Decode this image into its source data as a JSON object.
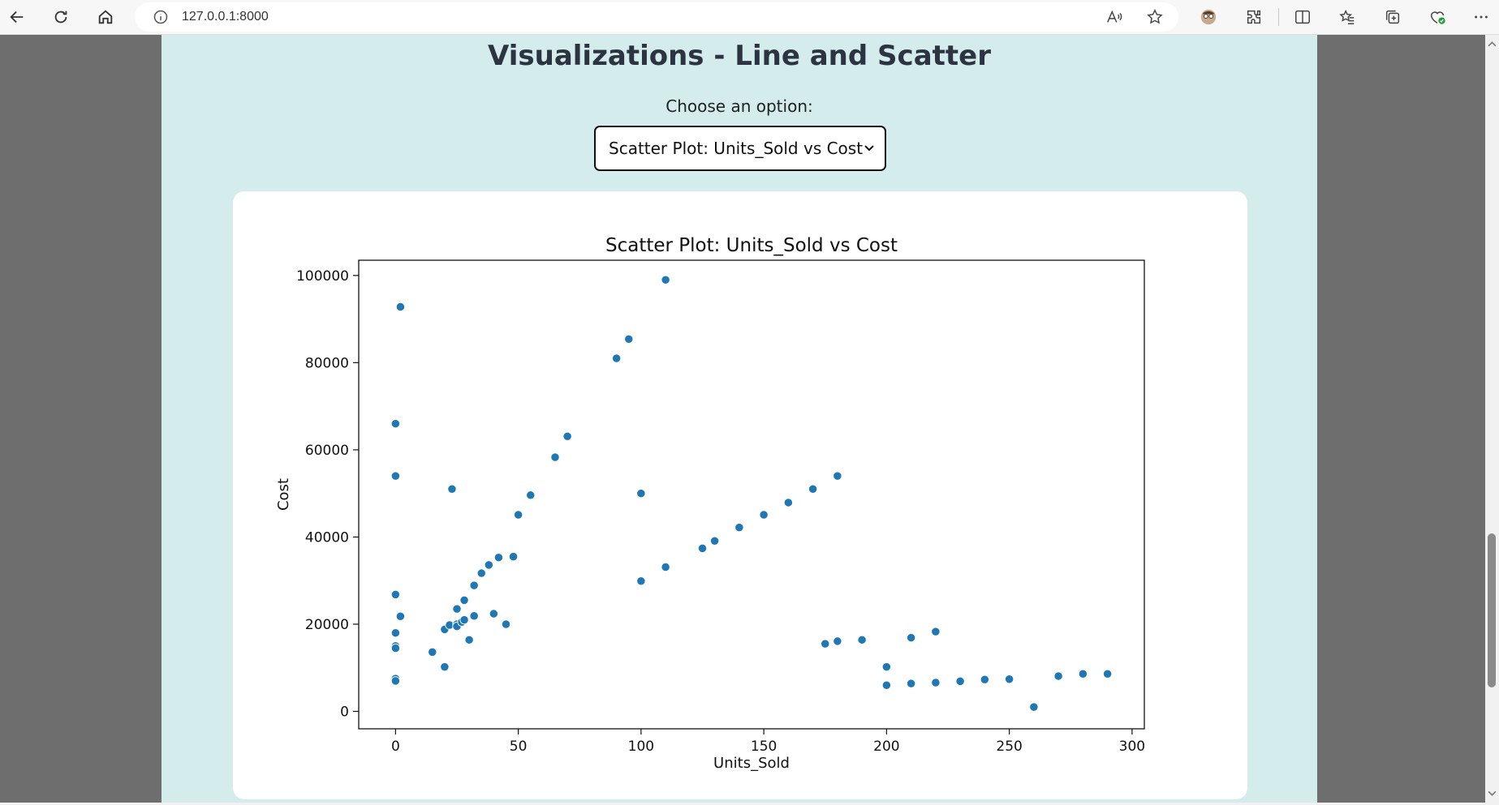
{
  "browser": {
    "url": "127.0.0.1:8000",
    "icons": [
      "back-icon",
      "refresh-icon",
      "home-icon",
      "info-icon",
      "read-aloud-icon",
      "favorite-star-icon",
      "profile-icon",
      "extensions-icon",
      "split-screen-icon",
      "favorites-icon",
      "collections-icon",
      "browser-essentials-icon",
      "more-icon"
    ]
  },
  "page": {
    "title": "Visualizations - Line and Scatter",
    "choose_label": "Choose an option:",
    "select_value": "Scatter Plot: Units_Sold vs Cost"
  },
  "chart_data": {
    "type": "scatter",
    "title": "Scatter Plot: Units_Sold vs Cost",
    "xlabel": "Units_Sold",
    "ylabel": "Cost",
    "xlim": [
      -15,
      305
    ],
    "ylim": [
      -4000,
      103500
    ],
    "xticks": [
      0,
      50,
      100,
      150,
      200,
      250,
      300
    ],
    "yticks": [
      0,
      20000,
      40000,
      60000,
      80000,
      100000
    ],
    "grid": false,
    "color": "#1f77b4",
    "points": [
      [
        2,
        92800
      ],
      [
        0,
        66000
      ],
      [
        0,
        54000
      ],
      [
        0,
        26800
      ],
      [
        2,
        21800
      ],
      [
        0,
        18000
      ],
      [
        0,
        15000
      ],
      [
        0,
        14500
      ],
      [
        0,
        7500
      ],
      [
        0,
        7000
      ],
      [
        15,
        13600
      ],
      [
        20,
        10200
      ],
      [
        20,
        18800
      ],
      [
        22,
        19800
      ],
      [
        23,
        51000
      ],
      [
        25,
        20000
      ],
      [
        25,
        19500
      ],
      [
        25,
        23500
      ],
      [
        27,
        20500
      ],
      [
        28,
        21000
      ],
      [
        28,
        25500
      ],
      [
        30,
        16400
      ],
      [
        32,
        21900
      ],
      [
        32,
        28900
      ],
      [
        35,
        31700
      ],
      [
        38,
        33600
      ],
      [
        40,
        22400
      ],
      [
        42,
        35300
      ],
      [
        45,
        20000
      ],
      [
        48,
        35500
      ],
      [
        50,
        45100
      ],
      [
        55,
        49600
      ],
      [
        65,
        58300
      ],
      [
        70,
        63100
      ],
      [
        90,
        81000
      ],
      [
        95,
        85400
      ],
      [
        100,
        50000
      ],
      [
        100,
        29900
      ],
      [
        110,
        33100
      ],
      [
        110,
        99000
      ],
      [
        125,
        37400
      ],
      [
        130,
        39100
      ],
      [
        140,
        42200
      ],
      [
        150,
        45100
      ],
      [
        160,
        47900
      ],
      [
        170,
        51000
      ],
      [
        180,
        54000
      ],
      [
        175,
        15500
      ],
      [
        180,
        16100
      ],
      [
        190,
        16400
      ],
      [
        200,
        10200
      ],
      [
        200,
        6000
      ],
      [
        210,
        16900
      ],
      [
        210,
        6400
      ],
      [
        220,
        18300
      ],
      [
        220,
        6600
      ],
      [
        230,
        6900
      ],
      [
        240,
        7300
      ],
      [
        250,
        7400
      ],
      [
        260,
        1000
      ],
      [
        270,
        8100
      ],
      [
        280,
        8600
      ],
      [
        290,
        8600
      ]
    ]
  }
}
